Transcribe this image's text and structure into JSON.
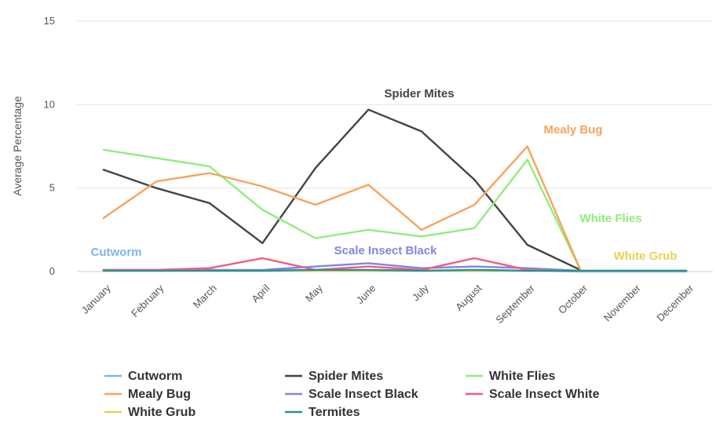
{
  "chart_data": {
    "type": "line",
    "title": "",
    "xlabel": "",
    "ylabel": "Average Percentage",
    "ylim": [
      0,
      15
    ],
    "yticks": [
      0,
      5,
      10,
      15
    ],
    "grid": true,
    "legend_position": "bottom",
    "categories": [
      "January",
      "February",
      "March",
      "April",
      "May",
      "June",
      "July",
      "August",
      "September",
      "October",
      "November",
      "December"
    ],
    "series": [
      {
        "name": "Cutworm",
        "color": "#7cb5ec",
        "values": [
          0.1,
          0.1,
          0.1,
          0.05,
          0.05,
          0.05,
          0.05,
          0.05,
          0.05,
          0,
          0,
          0
        ]
      },
      {
        "name": "Spider Mites",
        "color": "#434348",
        "values": [
          6.1,
          5.0,
          4.1,
          1.7,
          6.2,
          9.7,
          8.4,
          5.5,
          1.6,
          0.1,
          null,
          null
        ]
      },
      {
        "name": "White Flies",
        "color": "#90ed7d",
        "values": [
          7.3,
          6.8,
          6.3,
          3.7,
          2.0,
          2.5,
          2.1,
          2.6,
          6.7,
          0.1,
          null,
          null
        ]
      },
      {
        "name": "Mealy Bug",
        "color": "#f7a35c",
        "values": [
          3.2,
          5.4,
          5.9,
          5.1,
          4.0,
          5.2,
          2.5,
          4.0,
          7.5,
          0.1,
          null,
          null
        ]
      },
      {
        "name": "Scale Insect Black",
        "color": "#8085e9",
        "values": [
          0.1,
          0.1,
          0.1,
          0.1,
          0.3,
          0.5,
          0.2,
          0.3,
          0.2,
          0.05,
          null,
          null
        ]
      },
      {
        "name": "Scale Insect White",
        "color": "#f15c80",
        "values": [
          0.1,
          0.1,
          0.2,
          0.8,
          0.1,
          0.3,
          0.1,
          0.8,
          0.1,
          0.05,
          null,
          null
        ]
      },
      {
        "name": "White Grub",
        "color": "#e4d354",
        "values": [
          0.05,
          0.05,
          0.05,
          0.05,
          0.05,
          0.05,
          0.05,
          0.05,
          0.05,
          0.05,
          0.05,
          0.05
        ]
      },
      {
        "name": "Termites",
        "color": "#2b908f",
        "values": [
          0.05,
          0.05,
          0.05,
          0.05,
          0.1,
          0.1,
          0.05,
          0.1,
          0.05,
          0.05,
          0.05,
          0.05
        ]
      }
    ],
    "annotations": [
      {
        "text": "Spider Mites",
        "series": "Spider Mites"
      },
      {
        "text": "Mealy Bug",
        "series": "Mealy Bug"
      },
      {
        "text": "White Flies",
        "series": "White Flies"
      },
      {
        "text": "Cutworm",
        "series": "Cutworm"
      },
      {
        "text": "Scale Insect Black",
        "series": "Scale Insect Black"
      },
      {
        "text": "White Grub",
        "series": "White Grub"
      }
    ]
  }
}
